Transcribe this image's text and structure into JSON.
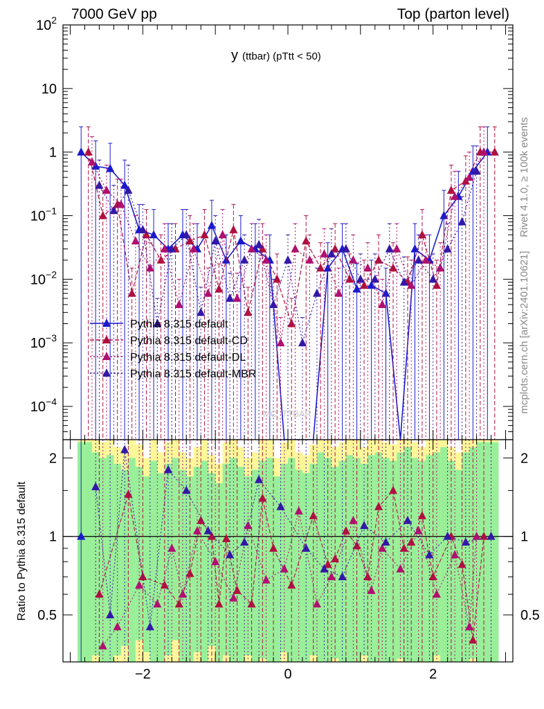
{
  "header": {
    "left_label": "7000 GeV pp",
    "right_label": "Top (parton level)"
  },
  "side_labels": {
    "rivet": "Rivet 4.1.0, ≥ 100k events",
    "mcplots": "mcplots.cern.ch [arXiv:2401.10621]"
  },
  "watermark": "MC_TTBAR",
  "colors": {
    "default": "#1a1acc",
    "cd": "#b0103f",
    "dl": "#b01070",
    "mbr": "#3318a8",
    "band_inner": "#99ef99",
    "band_outer": "#fdf79a",
    "frame": "#000000"
  },
  "chart_data": [
    {
      "type": "line",
      "panel": "main",
      "title": "y (ttbar) (pTtt < 50)",
      "title_parts": {
        "var": "y",
        "rest": "(ttbar)  (pTtt < 50)"
      },
      "yscale": "log",
      "xlim": [
        -3.1,
        3.1
      ],
      "ylim": [
        3e-05,
        100
      ],
      "x_ticks": [
        -2,
        0,
        2
      ],
      "y_ticks": [
        {
          "v": 100,
          "label": "10",
          "sup": "2"
        },
        {
          "v": 10,
          "label": "10",
          "sup": ""
        },
        {
          "v": 1,
          "label": "1",
          "sup": ""
        },
        {
          "v": 0.1,
          "label": "10",
          "sup": "−1"
        },
        {
          "v": 0.01,
          "label": "10",
          "sup": "−2"
        },
        {
          "v": 0.001,
          "label": "10",
          "sup": "−3"
        },
        {
          "v": 0.0001,
          "label": "10",
          "sup": "−4"
        }
      ],
      "legend": [
        "Pythia 8.315 default",
        "Pythia 8.315 default-CD",
        "Pythia 8.315 default-DL",
        "Pythia 8.315 default-MBR"
      ],
      "series": [
        {
          "name": "Pythia 8.315 default",
          "x": [
            -2.85,
            -2.65,
            -2.45,
            -2.25,
            -2.05,
            -1.85,
            -1.65,
            -1.45,
            -1.25,
            -1.05,
            -0.85,
            -0.65,
            -0.45,
            -0.25,
            -0.05,
            0.15,
            0.35,
            0.55,
            0.75,
            0.95,
            1.15,
            1.35,
            1.55,
            1.75,
            1.95,
            2.15,
            2.35,
            2.55,
            2.75
          ],
          "values": [
            1.0,
            0.6,
            0.55,
            0.3,
            0.06,
            0.05,
            0.03,
            0.05,
            0.03,
            0.07,
            0.02,
            0.04,
            0.03,
            0.02,
            3e-05,
            3e-05,
            3e-05,
            0.015,
            0.03,
            0.007,
            0.008,
            0.006,
            3e-05,
            0.03,
            0.02,
            0.1,
            0.2,
            0.5,
            1.0
          ]
        },
        {
          "name": "Pythia 8.315 default-CD",
          "x": [
            -2.75,
            -2.55,
            -2.35,
            -2.15,
            -1.95,
            -1.75,
            -1.55,
            -1.35,
            -1.15,
            -0.95,
            -0.75,
            -0.55,
            -0.35,
            -0.15,
            0.05,
            0.25,
            0.45,
            0.65,
            0.85,
            1.05,
            1.25,
            1.45,
            1.65,
            1.85,
            2.05,
            2.25,
            2.45,
            2.65,
            2.85
          ],
          "values": [
            1.0,
            0.1,
            0.15,
            0.006,
            0.05,
            0.02,
            0.03,
            0.04,
            0.05,
            0.007,
            0.06,
            0.003,
            0.03,
            0.01,
            0.002,
            0.04,
            0.015,
            0.03,
            0.01,
            0.008,
            0.02,
            0.015,
            0.009,
            0.05,
            0.008,
            0.25,
            0.35,
            1.0,
            1.0
          ]
        },
        {
          "name": "Pythia 8.315 default-DL",
          "x": [
            -2.7,
            -2.5,
            -2.3,
            -2.1,
            -1.9,
            -1.7,
            -1.5,
            -1.3,
            -1.1,
            -0.9,
            -0.7,
            -0.5,
            -0.3,
            -0.1,
            0.1,
            0.3,
            0.5,
            0.7,
            0.9,
            1.1,
            1.3,
            1.5,
            1.7,
            1.9,
            2.1,
            2.3,
            2.5,
            2.7
          ],
          "values": [
            0.7,
            0.25,
            0.15,
            0.04,
            0.015,
            0.03,
            0.004,
            0.03,
            0.006,
            0.05,
            0.005,
            0.03,
            0.02,
            0.001,
            0.03,
            0.02,
            0.025,
            0.006,
            0.02,
            0.015,
            0.004,
            0.03,
            0.008,
            0.02,
            0.015,
            0.2,
            0.4,
            1.0
          ]
        },
        {
          "name": "Pythia 8.315 default-MBR",
          "x": [
            -2.6,
            -2.4,
            -2.2,
            -2.0,
            -1.8,
            -1.6,
            -1.4,
            -1.2,
            -1.0,
            -0.8,
            -0.6,
            -0.4,
            -0.2,
            0.0,
            0.2,
            0.4,
            0.6,
            0.8,
            1.0,
            1.2,
            1.4,
            1.6,
            1.8,
            2.0,
            2.2,
            2.4,
            2.6
          ],
          "values": [
            0.3,
            0.12,
            0.25,
            0.06,
            0.002,
            0.03,
            0.05,
            0.003,
            0.04,
            0.005,
            0.02,
            0.035,
            0.004,
            0.02,
            0.001,
            0.006,
            0.025,
            0.03,
            0.01,
            0.01,
            0.03,
            0.009,
            0.02,
            0.01,
            0.03,
            0.08,
            0.5
          ]
        }
      ]
    },
    {
      "type": "line",
      "panel": "ratio",
      "ylabel": "Ratio to Pythia 8.315 default",
      "xlim": [
        -3.1,
        3.1
      ],
      "ylim": [
        0.33,
        2.35
      ],
      "x_ticks": [
        -2,
        0,
        2
      ],
      "y_ticks": [
        0.5,
        1,
        2
      ],
      "reference_line": 1,
      "band_edges": [
        -2.9,
        -2.8,
        -2.7,
        -2.6,
        -2.5,
        -2.4,
        -2.3,
        -2.2,
        -2.1,
        -2.0,
        -1.9,
        -1.8,
        -1.7,
        -1.6,
        -1.5,
        -1.4,
        -1.3,
        -1.2,
        -1.1,
        -1.0,
        -0.9,
        -0.8,
        -0.7,
        -0.6,
        -0.5,
        -0.4,
        -0.3,
        -0.2,
        -0.1,
        0.0,
        0.1,
        0.2,
        0.3,
        0.4,
        0.5,
        0.6,
        0.7,
        0.8,
        0.9,
        1.0,
        1.1,
        1.2,
        1.3,
        1.4,
        1.5,
        1.6,
        1.7,
        1.8,
        1.9,
        2.0,
        2.1,
        2.2,
        2.3,
        2.4,
        2.5,
        2.6,
        2.7,
        2.8,
        2.9
      ],
      "band_inner_high": [
        2.3,
        2.3,
        2.1,
        2.0,
        2.05,
        1.9,
        1.8,
        2.0,
        1.85,
        1.7,
        1.95,
        1.75,
        1.9,
        2.0,
        1.8,
        1.7,
        1.85,
        1.95,
        1.75,
        1.6,
        1.9,
        2.0,
        1.85,
        1.7,
        1.8,
        1.95,
        2.0,
        1.7,
        1.9,
        2.0,
        1.8,
        1.75,
        1.9,
        2.1,
        2.0,
        1.85,
        1.95,
        2.05,
        2.0,
        1.9,
        2.05,
        2.1,
        2.0,
        1.95,
        2.1,
        2.2,
        2.0,
        1.95,
        2.05,
        2.1,
        2.2,
        1.95,
        1.8,
        2.1,
        2.2,
        2.3,
        2.3,
        2.3
      ],
      "band_inner_low": [
        0.33,
        0.33,
        0.35,
        0.33,
        0.33,
        0.35,
        0.38,
        0.33,
        0.4,
        0.36,
        0.33,
        0.33,
        0.35,
        0.4,
        0.33,
        0.33,
        0.36,
        0.33,
        0.38,
        0.33,
        0.35,
        0.33,
        0.33,
        0.35,
        0.33,
        0.34,
        0.33,
        0.33,
        0.36,
        0.33,
        0.33,
        0.33,
        0.35,
        0.33,
        0.33,
        0.34,
        0.33,
        0.33,
        0.33,
        0.35,
        0.33,
        0.33,
        0.33,
        0.33,
        0.34,
        0.33,
        0.33,
        0.33,
        0.33,
        0.35,
        0.33,
        0.33,
        0.33,
        0.33,
        0.34,
        0.33,
        0.33,
        0.33
      ],
      "band_outer_high": [
        2.35,
        2.35,
        2.35,
        2.3,
        2.35,
        2.2,
        2.1,
        2.35,
        2.25,
        2.0,
        2.35,
        2.1,
        2.3,
        2.35,
        2.1,
        2.0,
        2.2,
        2.35,
        2.05,
        1.9,
        2.3,
        2.35,
        2.2,
        2.0,
        2.1,
        2.35,
        2.35,
        2.0,
        2.3,
        2.35,
        2.1,
        2.05,
        2.25,
        2.35,
        2.35,
        2.2,
        2.3,
        2.35,
        2.35,
        2.2,
        2.35,
        2.35,
        2.3,
        2.25,
        2.35,
        2.35,
        2.3,
        2.2,
        2.35,
        2.35,
        2.35,
        2.2,
        2.1,
        2.35,
        2.35,
        2.35,
        2.35,
        2.35
      ],
      "band_outer_low": [
        0.33,
        0.33,
        0.33,
        0.33,
        0.33,
        0.33,
        0.33,
        0.33,
        0.33,
        0.33,
        0.33,
        0.33,
        0.33,
        0.33,
        0.33,
        0.33,
        0.33,
        0.33,
        0.33,
        0.33,
        0.33,
        0.33,
        0.33,
        0.33,
        0.33,
        0.33,
        0.33,
        0.33,
        0.33,
        0.33,
        0.33,
        0.33,
        0.33,
        0.33,
        0.33,
        0.33,
        0.33,
        0.33,
        0.33,
        0.33,
        0.33,
        0.33,
        0.33,
        0.33,
        0.33,
        0.33,
        0.33,
        0.33,
        0.33,
        0.33,
        0.33,
        0.33,
        0.33,
        0.33,
        0.33,
        0.33,
        0.33,
        0.33
      ],
      "series": [
        {
          "name": "Pythia 8.315 default",
          "x": [
            -2.85
          ],
          "values": [
            1.0
          ]
        },
        {
          "name": "Pythia 8.315 default-CD",
          "x": [
            -2.6,
            -2.2,
            -2.0,
            -1.7,
            -1.5,
            -1.35,
            -1.2,
            -1.05,
            -0.95,
            -0.85,
            -0.7,
            -0.5,
            -0.35,
            -0.2,
            0.05,
            0.35,
            0.55,
            0.65,
            0.8,
            0.95,
            1.1,
            1.25,
            1.45,
            1.6,
            1.7,
            1.85,
            2.0,
            2.25,
            2.4,
            2.55,
            2.7
          ],
          "values": [
            0.6,
            1.45,
            0.7,
            0.65,
            0.55,
            0.72,
            1.15,
            1.0,
            0.55,
            0.98,
            0.62,
            0.55,
            1.4,
            0.9,
            0.65,
            1.2,
            0.78,
            0.82,
            1.05,
            0.92,
            0.7,
            1.3,
            1.5,
            0.9,
            0.95,
            1.2,
            0.7,
            1.0,
            0.78,
            0.4,
            1.0
          ]
        },
        {
          "name": "Pythia 8.315 default-DL",
          "x": [
            -2.55,
            -2.35,
            -2.05,
            -1.8,
            -1.6,
            -1.45,
            -1.25,
            -1.0,
            -0.75,
            -0.55,
            -0.3,
            -0.05,
            0.15,
            0.4,
            0.6,
            0.9,
            1.15,
            1.3,
            1.55,
            1.8,
            2.05,
            2.3,
            2.5,
            2.6
          ],
          "values": [
            0.38,
            0.45,
            0.65,
            0.55,
            0.9,
            0.6,
            1.05,
            0.8,
            0.58,
            1.1,
            0.68,
            0.75,
            1.25,
            0.55,
            0.7,
            1.15,
            0.62,
            0.9,
            0.75,
            1.05,
            0.6,
            0.85,
            0.45,
            1.0
          ]
        },
        {
          "name": "Pythia 8.315 default-MBR",
          "x": [
            -2.65,
            -2.45,
            -2.25,
            -1.9,
            -1.65,
            -1.4,
            -1.1,
            -0.8,
            -0.6,
            -0.4,
            -0.1,
            0.25,
            0.5,
            0.75,
            1.05,
            1.35,
            1.65,
            1.95,
            2.2,
            2.45,
            2.8
          ],
          "values": [
            1.55,
            0.5,
            2.15,
            0.45,
            1.8,
            1.5,
            1.05,
            0.85,
            0.95,
            1.65,
            1.3,
            0.9,
            0.75,
            0.7,
            1.1,
            0.95,
            1.15,
            0.85,
            1.0,
            0.95,
            1.0
          ]
        }
      ]
    }
  ]
}
